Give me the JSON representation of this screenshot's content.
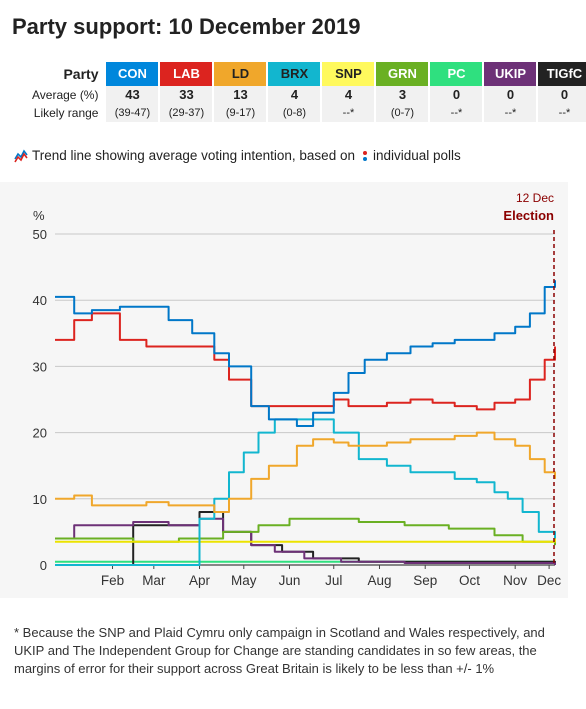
{
  "title": "Party support: 10 December 2019",
  "table": {
    "row_header": "Party",
    "avg_label": "Average (%)",
    "range_label": "Likely range",
    "parties": [
      {
        "name": "CON",
        "color": "#0087dc",
        "avg": "43",
        "range": "(39-47)",
        "dark": false
      },
      {
        "name": "LAB",
        "color": "#dc241f",
        "avg": "33",
        "range": "(29-37)",
        "dark": false
      },
      {
        "name": "LD",
        "color": "#f0a72b",
        "avg": "13",
        "range": "(9-17)",
        "dark": true
      },
      {
        "name": "BRX",
        "color": "#12b6cf",
        "avg": "4",
        "range": "(0-8)",
        "dark": true
      },
      {
        "name": "SNP",
        "color": "#fff95d",
        "avg": "4",
        "range": "--*",
        "dark": true
      },
      {
        "name": "GRN",
        "color": "#6ab023",
        "avg": "3",
        "range": "(0-7)",
        "dark": false
      },
      {
        "name": "PC",
        "color": "#2fe07f",
        "avg": "0",
        "range": "--*",
        "dark": false
      },
      {
        "name": "UKIP",
        "color": "#6d3177",
        "avg": "0",
        "range": "--*",
        "dark": false
      },
      {
        "name": "TIGfC",
        "color": "#222222",
        "avg": "0",
        "range": "--*",
        "dark": false
      }
    ]
  },
  "legend_text_1": "Trend line showing average voting intention, based on",
  "legend_text_2": "individual polls",
  "chart_data": {
    "type": "line",
    "ylabel": "%",
    "ylim": [
      0,
      50
    ],
    "yticks": [
      0,
      10,
      20,
      30,
      40,
      50
    ],
    "xlim": [
      "2019-01-07",
      "2019-12-12"
    ],
    "xticks": [
      {
        "label": "Feb",
        "date": "2019-02-15"
      },
      {
        "label": "Mar",
        "date": "2019-03-15"
      },
      {
        "label": "Apr",
        "date": "2019-04-15"
      },
      {
        "label": "May",
        "date": "2019-05-15"
      },
      {
        "label": "Jun",
        "date": "2019-06-15"
      },
      {
        "label": "Jul",
        "date": "2019-07-15"
      },
      {
        "label": "Aug",
        "date": "2019-08-15"
      },
      {
        "label": "Sep",
        "date": "2019-09-15"
      },
      {
        "label": "Oct",
        "date": "2019-10-15"
      },
      {
        "label": "Nov",
        "date": "2019-11-15"
      },
      {
        "label": "Dec",
        "date": "2019-12-08"
      }
    ],
    "grid": true,
    "election_line": {
      "date": "2019-12-12",
      "label_date": "12 Dec",
      "label": "Election",
      "color": "#8b0000"
    },
    "series": [
      {
        "name": "CON",
        "color": "#0077c8",
        "x": [
          "2019-01-07",
          "2019-01-20",
          "2019-02-01",
          "2019-02-20",
          "2019-03-10",
          "2019-03-25",
          "2019-04-10",
          "2019-04-25",
          "2019-05-05",
          "2019-05-20",
          "2019-06-01",
          "2019-06-20",
          "2019-07-01",
          "2019-07-15",
          "2019-07-25",
          "2019-08-05",
          "2019-08-20",
          "2019-09-05",
          "2019-09-20",
          "2019-10-05",
          "2019-10-20",
          "2019-11-01",
          "2019-11-15",
          "2019-11-25",
          "2019-12-05",
          "2019-12-12"
        ],
        "y": [
          40.5,
          38,
          38.5,
          39,
          39,
          37,
          35,
          32,
          30,
          24,
          22,
          21,
          23,
          26,
          29,
          31,
          32,
          33,
          33.5,
          34,
          34,
          35,
          36,
          38,
          42,
          43
        ]
      },
      {
        "name": "LAB",
        "color": "#dc241f",
        "x": [
          "2019-01-07",
          "2019-01-20",
          "2019-02-01",
          "2019-02-20",
          "2019-03-10",
          "2019-03-25",
          "2019-04-10",
          "2019-04-25",
          "2019-05-05",
          "2019-05-20",
          "2019-06-01",
          "2019-06-20",
          "2019-07-01",
          "2019-07-15",
          "2019-07-25",
          "2019-08-05",
          "2019-08-20",
          "2019-09-05",
          "2019-09-20",
          "2019-10-05",
          "2019-10-20",
          "2019-11-01",
          "2019-11-15",
          "2019-11-25",
          "2019-12-05",
          "2019-12-12"
        ],
        "y": [
          34,
          37,
          38,
          34,
          33,
          33,
          33,
          31,
          28,
          24,
          24,
          24,
          24,
          25,
          24,
          24,
          24.5,
          25,
          24.5,
          24,
          23.5,
          24.5,
          25,
          28,
          31,
          33
        ]
      },
      {
        "name": "LD",
        "color": "#f0a72b",
        "x": [
          "2019-01-07",
          "2019-01-20",
          "2019-02-01",
          "2019-02-20",
          "2019-03-10",
          "2019-03-25",
          "2019-04-10",
          "2019-04-25",
          "2019-05-05",
          "2019-05-20",
          "2019-06-01",
          "2019-06-20",
          "2019-07-01",
          "2019-07-15",
          "2019-07-25",
          "2019-08-05",
          "2019-08-20",
          "2019-09-05",
          "2019-09-20",
          "2019-10-05",
          "2019-10-20",
          "2019-11-01",
          "2019-11-15",
          "2019-11-25",
          "2019-12-05",
          "2019-12-12"
        ],
        "y": [
          10,
          10.5,
          9,
          9,
          9.5,
          9,
          9,
          8,
          10,
          13,
          15,
          18,
          19,
          18.5,
          18,
          18,
          18.5,
          19,
          19,
          19.5,
          20,
          19,
          18,
          16,
          14,
          13
        ]
      },
      {
        "name": "BRX",
        "color": "#12b6cf",
        "x": [
          "2019-01-07",
          "2019-04-01",
          "2019-04-15",
          "2019-04-25",
          "2019-05-05",
          "2019-05-15",
          "2019-05-25",
          "2019-06-05",
          "2019-06-20",
          "2019-07-01",
          "2019-07-15",
          "2019-08-01",
          "2019-08-20",
          "2019-09-05",
          "2019-09-20",
          "2019-10-05",
          "2019-10-20",
          "2019-11-01",
          "2019-11-10",
          "2019-11-20",
          "2019-12-01",
          "2019-12-12"
        ],
        "y": [
          0,
          0,
          7,
          10,
          14,
          17,
          20,
          22,
          22,
          22,
          20,
          16,
          15,
          14,
          14,
          13,
          12.5,
          11,
          10,
          8,
          5,
          4
        ]
      },
      {
        "name": "SNP",
        "color": "#ece300",
        "x": [
          "2019-01-07",
          "2019-04-01",
          "2019-07-01",
          "2019-10-01",
          "2019-12-12"
        ],
        "y": [
          3.5,
          3.5,
          3.5,
          3.5,
          4
        ]
      },
      {
        "name": "GRN",
        "color": "#6ab023",
        "x": [
          "2019-01-07",
          "2019-03-01",
          "2019-04-01",
          "2019-05-01",
          "2019-05-25",
          "2019-06-15",
          "2019-07-01",
          "2019-08-01",
          "2019-09-01",
          "2019-10-01",
          "2019-11-01",
          "2019-11-20",
          "2019-12-12"
        ],
        "y": [
          4,
          3.5,
          4,
          5,
          6,
          7,
          7,
          6.5,
          6,
          5.5,
          4.5,
          3.5,
          3
        ]
      },
      {
        "name": "PC",
        "color": "#2fe07f",
        "x": [
          "2019-01-07",
          "2019-06-01",
          "2019-12-12"
        ],
        "y": [
          0.5,
          0.5,
          0.5
        ]
      },
      {
        "name": "UKIP",
        "color": "#6d3177",
        "x": [
          "2019-01-07",
          "2019-01-20",
          "2019-02-10",
          "2019-03-01",
          "2019-03-25",
          "2019-04-15",
          "2019-05-01",
          "2019-05-20",
          "2019-06-05",
          "2019-06-25",
          "2019-07-20",
          "2019-09-01",
          "2019-12-12"
        ],
        "y": [
          4,
          6,
          6,
          6.5,
          6,
          7,
          5,
          3,
          2,
          1,
          0.5,
          0.3,
          0
        ]
      },
      {
        "name": "TIGfC",
        "color": "#222222",
        "x": [
          "2019-01-07",
          "2019-02-20",
          "2019-03-01",
          "2019-03-20",
          "2019-04-15",
          "2019-05-01",
          "2019-05-20",
          "2019-06-10",
          "2019-07-01",
          "2019-08-01",
          "2019-12-12"
        ],
        "y": [
          0,
          0,
          6,
          6,
          8,
          5,
          3,
          2,
          1,
          0.5,
          0
        ]
      }
    ]
  },
  "footnote": "* Because the SNP and Plaid Cymru only campaign in Scotland and Wales respectively, and UKIP and The Independent Group for Change are standing candidates in so few areas, the margins of error for their support across Great Britain is likely to be less than +/- 1%"
}
